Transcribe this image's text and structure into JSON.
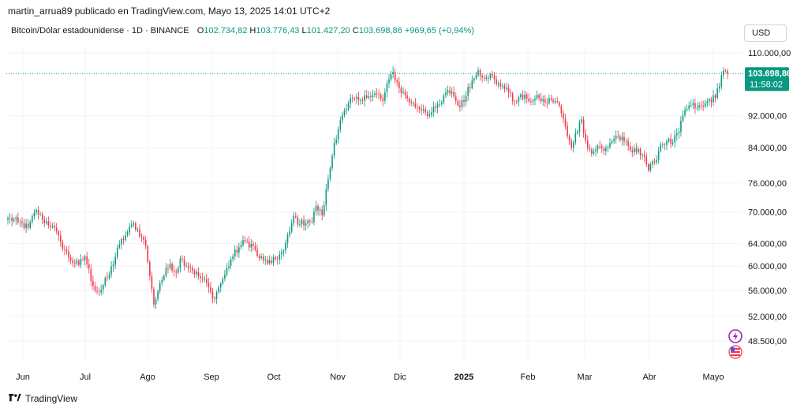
{
  "header": {
    "published_line": "martin_arrua89 publicado en TradingView.com, Mayo 13, 2025 14:01 UTC+2"
  },
  "symbol": {
    "name": "Bitcoin/Dólar estadounidense · 1D · BINANCE",
    "open_label": "O",
    "open": "102.734,82",
    "high_label": "H",
    "high": "103.776,43",
    "low_label": "L",
    "low": "101.427,20",
    "close_label": "C",
    "close": "103.698,86",
    "change": "+969,65 (+0,94%)"
  },
  "currency_button": "USD",
  "price_tag": {
    "price": "103.698,86",
    "countdown": "11:58:02"
  },
  "footer": {
    "brand": "TradingView"
  },
  "colors": {
    "up": "#089981",
    "down": "#f23645",
    "grid": "#f0f3fa",
    "axis_text": "#131722"
  },
  "chart_data": {
    "type": "candlestick",
    "y_scale": "log",
    "ylim": [
      45000,
      114000
    ],
    "y_ticks": [
      {
        "value": 110000,
        "label": "110.000,00"
      },
      {
        "value": 92000,
        "label": "92.000,00"
      },
      {
        "value": 84000,
        "label": "84.000,00"
      },
      {
        "value": 76000,
        "label": "76.000,00"
      },
      {
        "value": 70000,
        "label": "70.000,00"
      },
      {
        "value": 64000,
        "label": "64.000,00"
      },
      {
        "value": 60000,
        "label": "60.000,00"
      },
      {
        "value": 56000,
        "label": "56.000,00"
      },
      {
        "value": 52000,
        "label": "52.000,00"
      },
      {
        "value": 48500,
        "label": "48.500,00"
      }
    ],
    "x_ticks": [
      "Jun",
      "Jul",
      "Ago",
      "Sep",
      "Oct",
      "Nov",
      "Dic",
      "2025",
      "Feb",
      "Mar",
      "Abr",
      "Mayo"
    ],
    "bold_x_tick": "2025",
    "anchors": [
      [
        0,
        68800
      ],
      [
        5,
        68000
      ],
      [
        10,
        66900
      ],
      [
        14,
        70400
      ],
      [
        17,
        68500
      ],
      [
        22,
        67300
      ],
      [
        26,
        64200
      ],
      [
        31,
        61000
      ],
      [
        35,
        60200
      ],
      [
        38,
        61700
      ],
      [
        42,
        56700
      ],
      [
        45,
        55700
      ],
      [
        50,
        58600
      ],
      [
        55,
        63800
      ],
      [
        58,
        65500
      ],
      [
        62,
        67800
      ],
      [
        66,
        65200
      ],
      [
        68,
        63500
      ],
      [
        70,
        58300
      ],
      [
        72,
        53800
      ],
      [
        75,
        57200
      ],
      [
        80,
        60400
      ],
      [
        83,
        58900
      ],
      [
        85,
        61300
      ],
      [
        90,
        59700
      ],
      [
        94,
        58300
      ],
      [
        98,
        57200
      ],
      [
        101,
        54700
      ],
      [
        103,
        55700
      ],
      [
        107,
        58600
      ],
      [
        110,
        61200
      ],
      [
        114,
        63300
      ],
      [
        117,
        64400
      ],
      [
        121,
        63500
      ],
      [
        123,
        61800
      ],
      [
        126,
        61000
      ],
      [
        130,
        60500
      ],
      [
        134,
        62000
      ],
      [
        136,
        62700
      ],
      [
        139,
        66200
      ],
      [
        141,
        69200
      ],
      [
        144,
        67600
      ],
      [
        148,
        68300
      ],
      [
        150,
        68000
      ],
      [
        152,
        71200
      ],
      [
        155,
        69300
      ],
      [
        158,
        76800
      ],
      [
        161,
        85100
      ],
      [
        164,
        90800
      ],
      [
        167,
        93700
      ],
      [
        170,
        96700
      ],
      [
        173,
        96100
      ],
      [
        176,
        97500
      ],
      [
        179,
        97000
      ],
      [
        182,
        97900
      ],
      [
        185,
        96000
      ],
      [
        188,
        102000
      ],
      [
        190,
        104200
      ],
      [
        193,
        99500
      ],
      [
        196,
        97500
      ],
      [
        199,
        95300
      ],
      [
        202,
        94200
      ],
      [
        205,
        93700
      ],
      [
        208,
        92200
      ],
      [
        211,
        94100
      ],
      [
        214,
        95500
      ],
      [
        216,
        98200
      ],
      [
        219,
        98500
      ],
      [
        222,
        94700
      ],
      [
        225,
        95700
      ],
      [
        227,
        99800
      ],
      [
        230,
        102300
      ],
      [
        232,
        104700
      ],
      [
        235,
        102700
      ],
      [
        238,
        103500
      ],
      [
        241,
        100600
      ],
      [
        244,
        100200
      ],
      [
        246,
        99600
      ],
      [
        249,
        95900
      ],
      [
        252,
        97000
      ],
      [
        256,
        96600
      ],
      [
        259,
        96200
      ],
      [
        262,
        96800
      ],
      [
        265,
        95500
      ],
      [
        268,
        96300
      ],
      [
        271,
        95600
      ],
      [
        274,
        91200
      ],
      [
        276,
        86800
      ],
      [
        278,
        84000
      ],
      [
        280,
        87500
      ],
      [
        283,
        91000
      ],
      [
        285,
        85700
      ],
      [
        288,
        82600
      ],
      [
        291,
        84400
      ],
      [
        294,
        83200
      ],
      [
        297,
        85100
      ],
      [
        300,
        86900
      ],
      [
        304,
        85500
      ],
      [
        308,
        82900
      ],
      [
        311,
        83700
      ],
      [
        314,
        81900
      ],
      [
        316,
        78800
      ],
      [
        319,
        80600
      ],
      [
        322,
        84800
      ],
      [
        325,
        85500
      ],
      [
        328,
        85300
      ],
      [
        331,
        87900
      ],
      [
        334,
        93500
      ],
      [
        337,
        94800
      ],
      [
        340,
        94100
      ],
      [
        343,
        94500
      ],
      [
        346,
        96400
      ],
      [
        349,
        96800
      ],
      [
        352,
        103200
      ],
      [
        353,
        104600
      ],
      [
        355,
        103700
      ]
    ],
    "last_price": 103698.86
  }
}
